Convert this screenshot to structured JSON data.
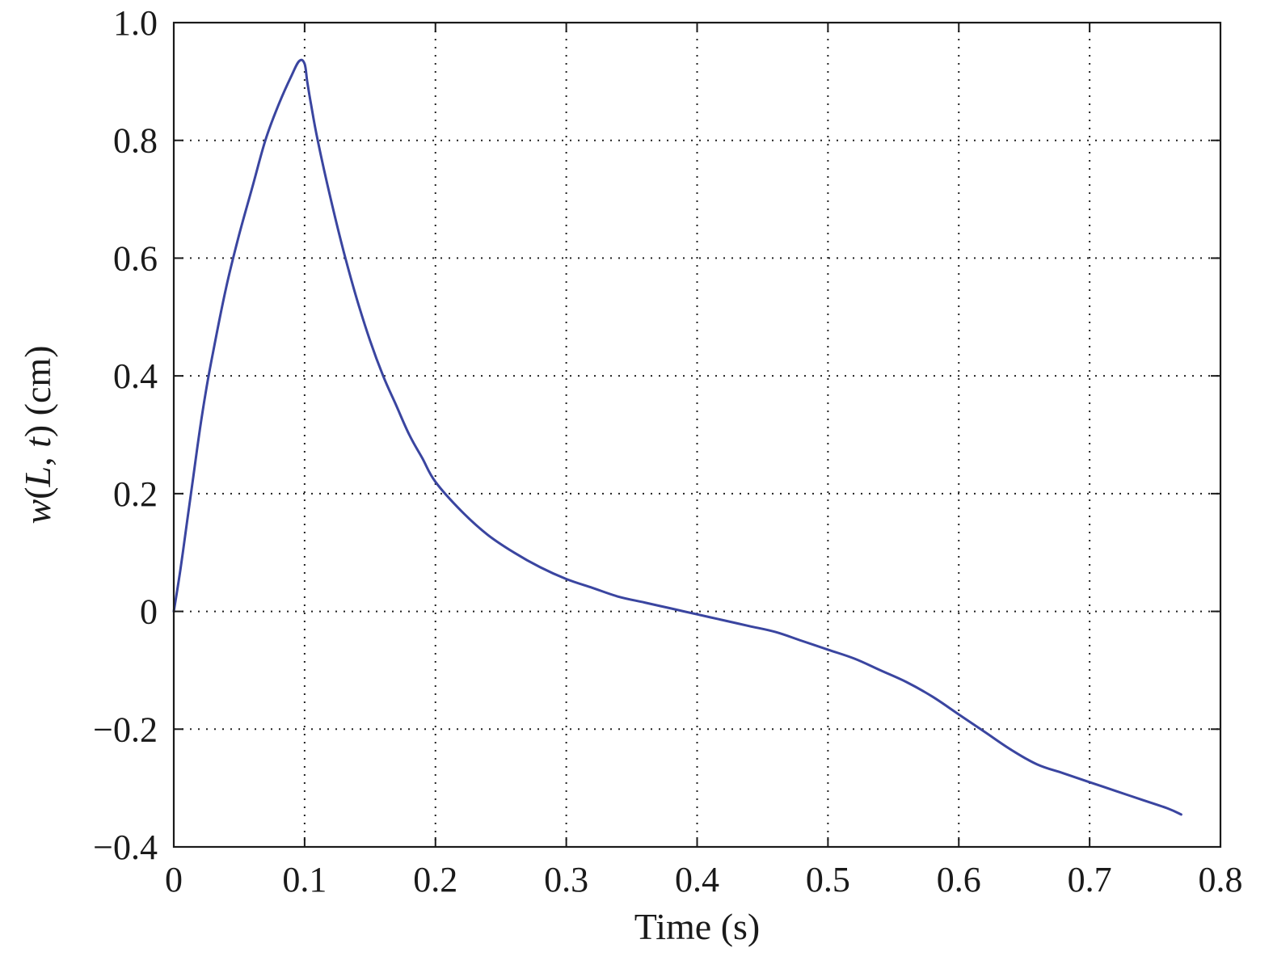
{
  "chart_data": {
    "type": "line",
    "title": "",
    "xlabel": "Time (s)",
    "ylabel": "w(L, t) (cm)",
    "ylabel_parts": [
      {
        "text": "w",
        "italic": true
      },
      {
        "text": "(",
        "italic": false
      },
      {
        "text": "L",
        "italic": true
      },
      {
        "text": ", ",
        "italic": false
      },
      {
        "text": "t",
        "italic": true
      },
      {
        "text": ") (cm)",
        "italic": false
      }
    ],
    "xlim": [
      0,
      0.8
    ],
    "ylim": [
      -0.4,
      1.0
    ],
    "xticks": [
      0,
      0.1,
      0.2,
      0.3,
      0.4,
      0.5,
      0.6,
      0.7,
      0.8
    ],
    "xtick_labels": [
      "0",
      "0.1",
      "0.2",
      "0.3",
      "0.4",
      "0.5",
      "0.6",
      "0.7",
      "0.8"
    ],
    "yticks": [
      -0.4,
      -0.2,
      0,
      0.2,
      0.4,
      0.6,
      0.8,
      1.0
    ],
    "ytick_labels": [
      "−0.4",
      "−0.2",
      "0",
      "0.2",
      "0.4",
      "0.6",
      "0.8",
      "1.0"
    ],
    "grid": true,
    "legend": "none",
    "series": [
      {
        "color": "#3a45a0",
        "x": [
          0,
          0.005,
          0.01,
          0.015,
          0.02,
          0.025,
          0.03,
          0.04,
          0.05,
          0.06,
          0.07,
          0.08,
          0.09,
          0.096,
          0.1,
          0.102,
          0.105,
          0.11,
          0.12,
          0.13,
          0.14,
          0.15,
          0.16,
          0.17,
          0.18,
          0.19,
          0.2,
          0.22,
          0.24,
          0.26,
          0.28,
          0.3,
          0.32,
          0.34,
          0.36,
          0.38,
          0.4,
          0.42,
          0.44,
          0.46,
          0.48,
          0.5,
          0.52,
          0.54,
          0.56,
          0.58,
          0.6,
          0.62,
          0.64,
          0.66,
          0.68,
          0.7,
          0.72,
          0.74,
          0.76,
          0.77
        ],
        "y": [
          0,
          0.07,
          0.15,
          0.23,
          0.31,
          0.38,
          0.44,
          0.55,
          0.64,
          0.72,
          0.8,
          0.86,
          0.91,
          0.935,
          0.93,
          0.9,
          0.86,
          0.8,
          0.7,
          0.61,
          0.53,
          0.46,
          0.4,
          0.35,
          0.3,
          0.26,
          0.22,
          0.17,
          0.13,
          0.1,
          0.075,
          0.055,
          0.04,
          0.025,
          0.015,
          0.005,
          -0.005,
          -0.015,
          -0.025,
          -0.035,
          -0.05,
          -0.065,
          -0.08,
          -0.1,
          -0.12,
          -0.145,
          -0.175,
          -0.205,
          -0.235,
          -0.26,
          -0.275,
          -0.29,
          -0.305,
          -0.32,
          -0.335,
          -0.345
        ]
      }
    ]
  }
}
